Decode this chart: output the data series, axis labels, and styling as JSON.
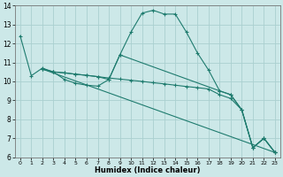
{
  "xlabel": "Humidex (Indice chaleur)",
  "bg_color": "#cce8e8",
  "line_color": "#1e7b6e",
  "grid_color": "#aad0d0",
  "xlim": [
    -0.5,
    23.5
  ],
  "ylim": [
    6,
    14
  ],
  "xticks": [
    0,
    1,
    2,
    3,
    4,
    5,
    6,
    7,
    8,
    9,
    10,
    11,
    12,
    13,
    14,
    15,
    16,
    17,
    18,
    19,
    20,
    21,
    22,
    23
  ],
  "yticks": [
    6,
    7,
    8,
    9,
    10,
    11,
    12,
    13,
    14
  ],
  "lines": [
    {
      "x": [
        0,
        1,
        2,
        3,
        4,
        5,
        6,
        7,
        8,
        9,
        10,
        11,
        12,
        13,
        14,
        15,
        16,
        17,
        18,
        19,
        20,
        21,
        22,
        23
      ],
      "y": [
        12.4,
        10.3,
        10.7,
        10.5,
        10.1,
        9.9,
        9.8,
        9.75,
        10.1,
        11.4,
        12.6,
        13.6,
        13.75,
        13.55,
        13.55,
        12.6,
        11.5,
        10.6,
        9.5,
        9.3,
        8.5,
        6.5,
        7.0,
        6.25
      ]
    },
    {
      "x": [
        2,
        3,
        4,
        5,
        6,
        7,
        8,
        9,
        10,
        11,
        12,
        13,
        14,
        15,
        16,
        17,
        18,
        19,
        20,
        21,
        22,
        23
      ],
      "y": [
        10.65,
        10.5,
        10.45,
        10.38,
        10.32,
        10.25,
        10.18,
        10.12,
        10.06,
        10.0,
        9.93,
        9.87,
        9.8,
        9.73,
        9.67,
        9.6,
        9.3,
        9.1,
        8.5,
        6.5,
        7.0,
        6.25
      ]
    },
    {
      "x": [
        2,
        23
      ],
      "y": [
        10.65,
        6.25
      ]
    },
    {
      "x": [
        2,
        3,
        4,
        5,
        6,
        7,
        8,
        9,
        18,
        19,
        20,
        21,
        22,
        23
      ],
      "y": [
        10.65,
        10.5,
        10.45,
        10.38,
        10.32,
        10.25,
        10.1,
        11.4,
        9.5,
        9.3,
        8.5,
        6.5,
        7.0,
        6.25
      ]
    }
  ]
}
